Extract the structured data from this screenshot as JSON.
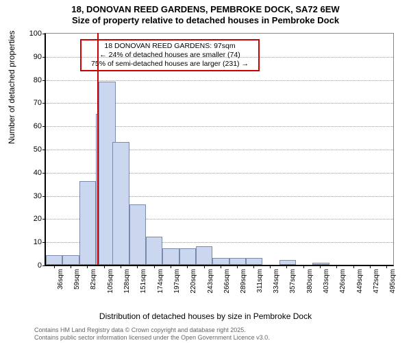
{
  "title_main": "18, DONOVAN REED GARDENS, PEMBROKE DOCK, SA72 6EW",
  "title_sub": "Size of property relative to detached houses in Pembroke Dock",
  "ylabel": "Number of detached properties",
  "xlabel": "Distribution of detached houses by size in Pembroke Dock",
  "footer_line1": "Contains HM Land Registry data © Crown copyright and database right 2025.",
  "footer_line2": "Contains public sector information licensed under the Open Government Licence v3.0.",
  "annotation": {
    "line1": "18 DONOVAN REED GARDENS: 97sqm",
    "line2": "← 24% of detached houses are smaller (74)",
    "line3": "75% of semi-detached houses are larger (231) →"
  },
  "chart": {
    "type": "histogram",
    "background_color": "#ffffff",
    "bar_fill": "#cbd7ee",
    "bar_border": "#7a8aaa",
    "grid_color": "#999999",
    "marker_color": "#cc0000",
    "marker_x_value": 97,
    "x_min": 25,
    "x_max": 505,
    "y_min": 0,
    "y_max": 100,
    "ytick_step": 10,
    "bin_width": 23,
    "bins": [
      {
        "start": 25,
        "count": 4
      },
      {
        "start": 48,
        "count": 4
      },
      {
        "start": 71,
        "count": 36
      },
      {
        "start": 94,
        "count": 65
      },
      {
        "start": 98,
        "count": 79
      },
      {
        "start": 117,
        "count": 53
      },
      {
        "start": 140,
        "count": 26
      },
      {
        "start": 163,
        "count": 12
      },
      {
        "start": 186,
        "count": 7
      },
      {
        "start": 209,
        "count": 7
      },
      {
        "start": 232,
        "count": 8
      },
      {
        "start": 255,
        "count": 3
      },
      {
        "start": 278,
        "count": 3
      },
      {
        "start": 301,
        "count": 3
      },
      {
        "start": 324,
        "count": 0
      },
      {
        "start": 347,
        "count": 2
      },
      {
        "start": 370,
        "count": 0
      },
      {
        "start": 393,
        "count": 1
      },
      {
        "start": 416,
        "count": 0
      },
      {
        "start": 439,
        "count": 0
      },
      {
        "start": 462,
        "count": 0
      },
      {
        "start": 485,
        "count": 0
      }
    ],
    "xticks": [
      36,
      59,
      82,
      105,
      128,
      151,
      174,
      197,
      220,
      243,
      266,
      289,
      311,
      334,
      357,
      380,
      403,
      426,
      449,
      472,
      495
    ],
    "xtick_suffix": "sqm"
  }
}
